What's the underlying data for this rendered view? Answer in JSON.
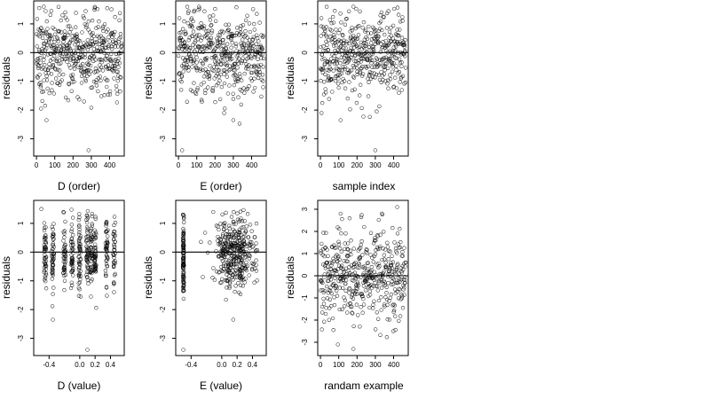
{
  "figure": {
    "panels": [
      {
        "key": "d_order",
        "xlabel": "D (order)",
        "ylabel": "residuals"
      },
      {
        "key": "e_order",
        "xlabel": "E (order)",
        "ylabel": "residuals"
      },
      {
        "key": "sample_index",
        "xlabel": "sample index",
        "ylabel": "residuals"
      },
      {
        "key": "d_value",
        "xlabel": "D (value)",
        "ylabel": "residuals"
      },
      {
        "key": "e_value",
        "xlabel": "E (value)",
        "ylabel": "residuals"
      },
      {
        "key": "randam_example",
        "xlabel": "randam example",
        "ylabel": "residuals"
      }
    ]
  },
  "chart_data": [
    {
      "type": "scatter",
      "xlabel": "D (order)",
      "ylabel": "residuals",
      "xlim": [
        -15,
        480
      ],
      "ylim": [
        -3.6,
        1.8
      ],
      "x_ticks": [
        0,
        100,
        200,
        300,
        400
      ],
      "y_ticks": [
        -3,
        -2,
        -1,
        0,
        1
      ],
      "reference_line_y": 0,
      "marker": "open-circle",
      "n_points": 467,
      "point_color": "#000000",
      "y_range_observed": [
        -3.4,
        1.6
      ],
      "notable_points": [
        [
          15,
          1.55
        ],
        [
          40,
          1.6
        ],
        [
          55,
          -2.35
        ],
        [
          25,
          -1.95
        ],
        [
          285,
          -3.4
        ],
        [
          260,
          -1.7
        ]
      ]
    },
    {
      "type": "scatter",
      "xlabel": "E (order)",
      "ylabel": "residuals",
      "xlim": [
        -15,
        480
      ],
      "ylim": [
        -3.6,
        1.8
      ],
      "x_ticks": [
        0,
        100,
        200,
        300,
        400
      ],
      "y_ticks": [
        -3,
        -2,
        -1,
        0,
        1
      ],
      "reference_line_y": 0,
      "marker": "open-circle",
      "n_points": 467,
      "point_color": "#000000",
      "y_range_observed": [
        -3.4,
        1.6
      ],
      "notable_points": [
        [
          20,
          -3.4
        ],
        [
          300,
          -2.35
        ],
        [
          250,
          -2.1
        ],
        [
          5,
          1.2
        ]
      ]
    },
    {
      "type": "scatter",
      "xlabel": "sample index",
      "ylabel": "residuals",
      "xlim": [
        -15,
        480
      ],
      "ylim": [
        -3.6,
        1.8
      ],
      "x_ticks": [
        0,
        100,
        200,
        300,
        400
      ],
      "y_ticks": [
        -3,
        -2,
        -1,
        0,
        1
      ],
      "reference_line_y": 0,
      "marker": "open-circle",
      "n_points": 467,
      "point_color": "#000000",
      "y_range_observed": [
        -3.4,
        1.6
      ],
      "notable_points": [
        [
          300,
          -3.4
        ],
        [
          110,
          -2.35
        ],
        [
          180,
          1.6
        ],
        [
          5,
          1.2
        ]
      ]
    },
    {
      "type": "scatter",
      "xlabel": "D (value)",
      "ylabel": "residuals",
      "xlim": [
        -0.6,
        0.58
      ],
      "ylim": [
        -3.6,
        1.8
      ],
      "x_ticks": [
        -0.4,
        0.0,
        0.2,
        0.4
      ],
      "x_tick_labels": [
        "-0.4",
        "0.0",
        "0.2",
        "0.4"
      ],
      "y_ticks": [
        -3,
        -2,
        -1,
        0,
        1
      ],
      "reference_line_y": 0,
      "marker": "open-circle",
      "n_points": 467,
      "point_color": "#000000",
      "x_clusters": [
        -0.45,
        -0.35,
        -0.2,
        -0.1,
        0.0,
        0.1,
        0.15,
        0.2,
        0.35,
        0.45
      ],
      "notable_points": [
        [
          0.1,
          -3.4
        ],
        [
          -0.35,
          -2.35
        ],
        [
          -0.5,
          1.5
        ]
      ]
    },
    {
      "type": "scatter",
      "xlabel": "E (value)",
      "ylabel": "residuals",
      "xlim": [
        -0.6,
        0.58
      ],
      "ylim": [
        -3.6,
        1.8
      ],
      "x_ticks": [
        -0.4,
        0.0,
        0.2,
        0.4
      ],
      "x_tick_labels": [
        "-0.4",
        "0.0",
        "0.2",
        "0.4"
      ],
      "y_ticks": [
        -3,
        -2,
        -1,
        0,
        1
      ],
      "reference_line_y": 0,
      "marker": "open-circle",
      "n_points": 467,
      "point_color": "#000000",
      "x_clusters": [
        -0.5,
        0.15,
        0.2
      ],
      "notable_points": [
        [
          -0.5,
          -3.4
        ],
        [
          0.15,
          -2.35
        ],
        [
          -0.5,
          1.3
        ]
      ]
    },
    {
      "type": "scatter",
      "xlabel": "randam example",
      "ylabel": "residuals",
      "xlim": [
        -15,
        480
      ],
      "ylim": [
        -3.6,
        3.4
      ],
      "x_ticks": [
        0,
        100,
        200,
        300,
        400
      ],
      "y_ticks": [
        -3,
        -2,
        -1,
        0,
        1,
        2,
        3
      ],
      "reference_line_y": 0,
      "marker": "open-circle",
      "n_points": 467,
      "point_color": "#000000",
      "y_range_observed": [
        -3.3,
        3.1
      ],
      "notable_points": [
        [
          420,
          3.1
        ],
        [
          110,
          2.8
        ],
        [
          180,
          -3.3
        ],
        [
          95,
          -3.1
        ]
      ]
    }
  ]
}
